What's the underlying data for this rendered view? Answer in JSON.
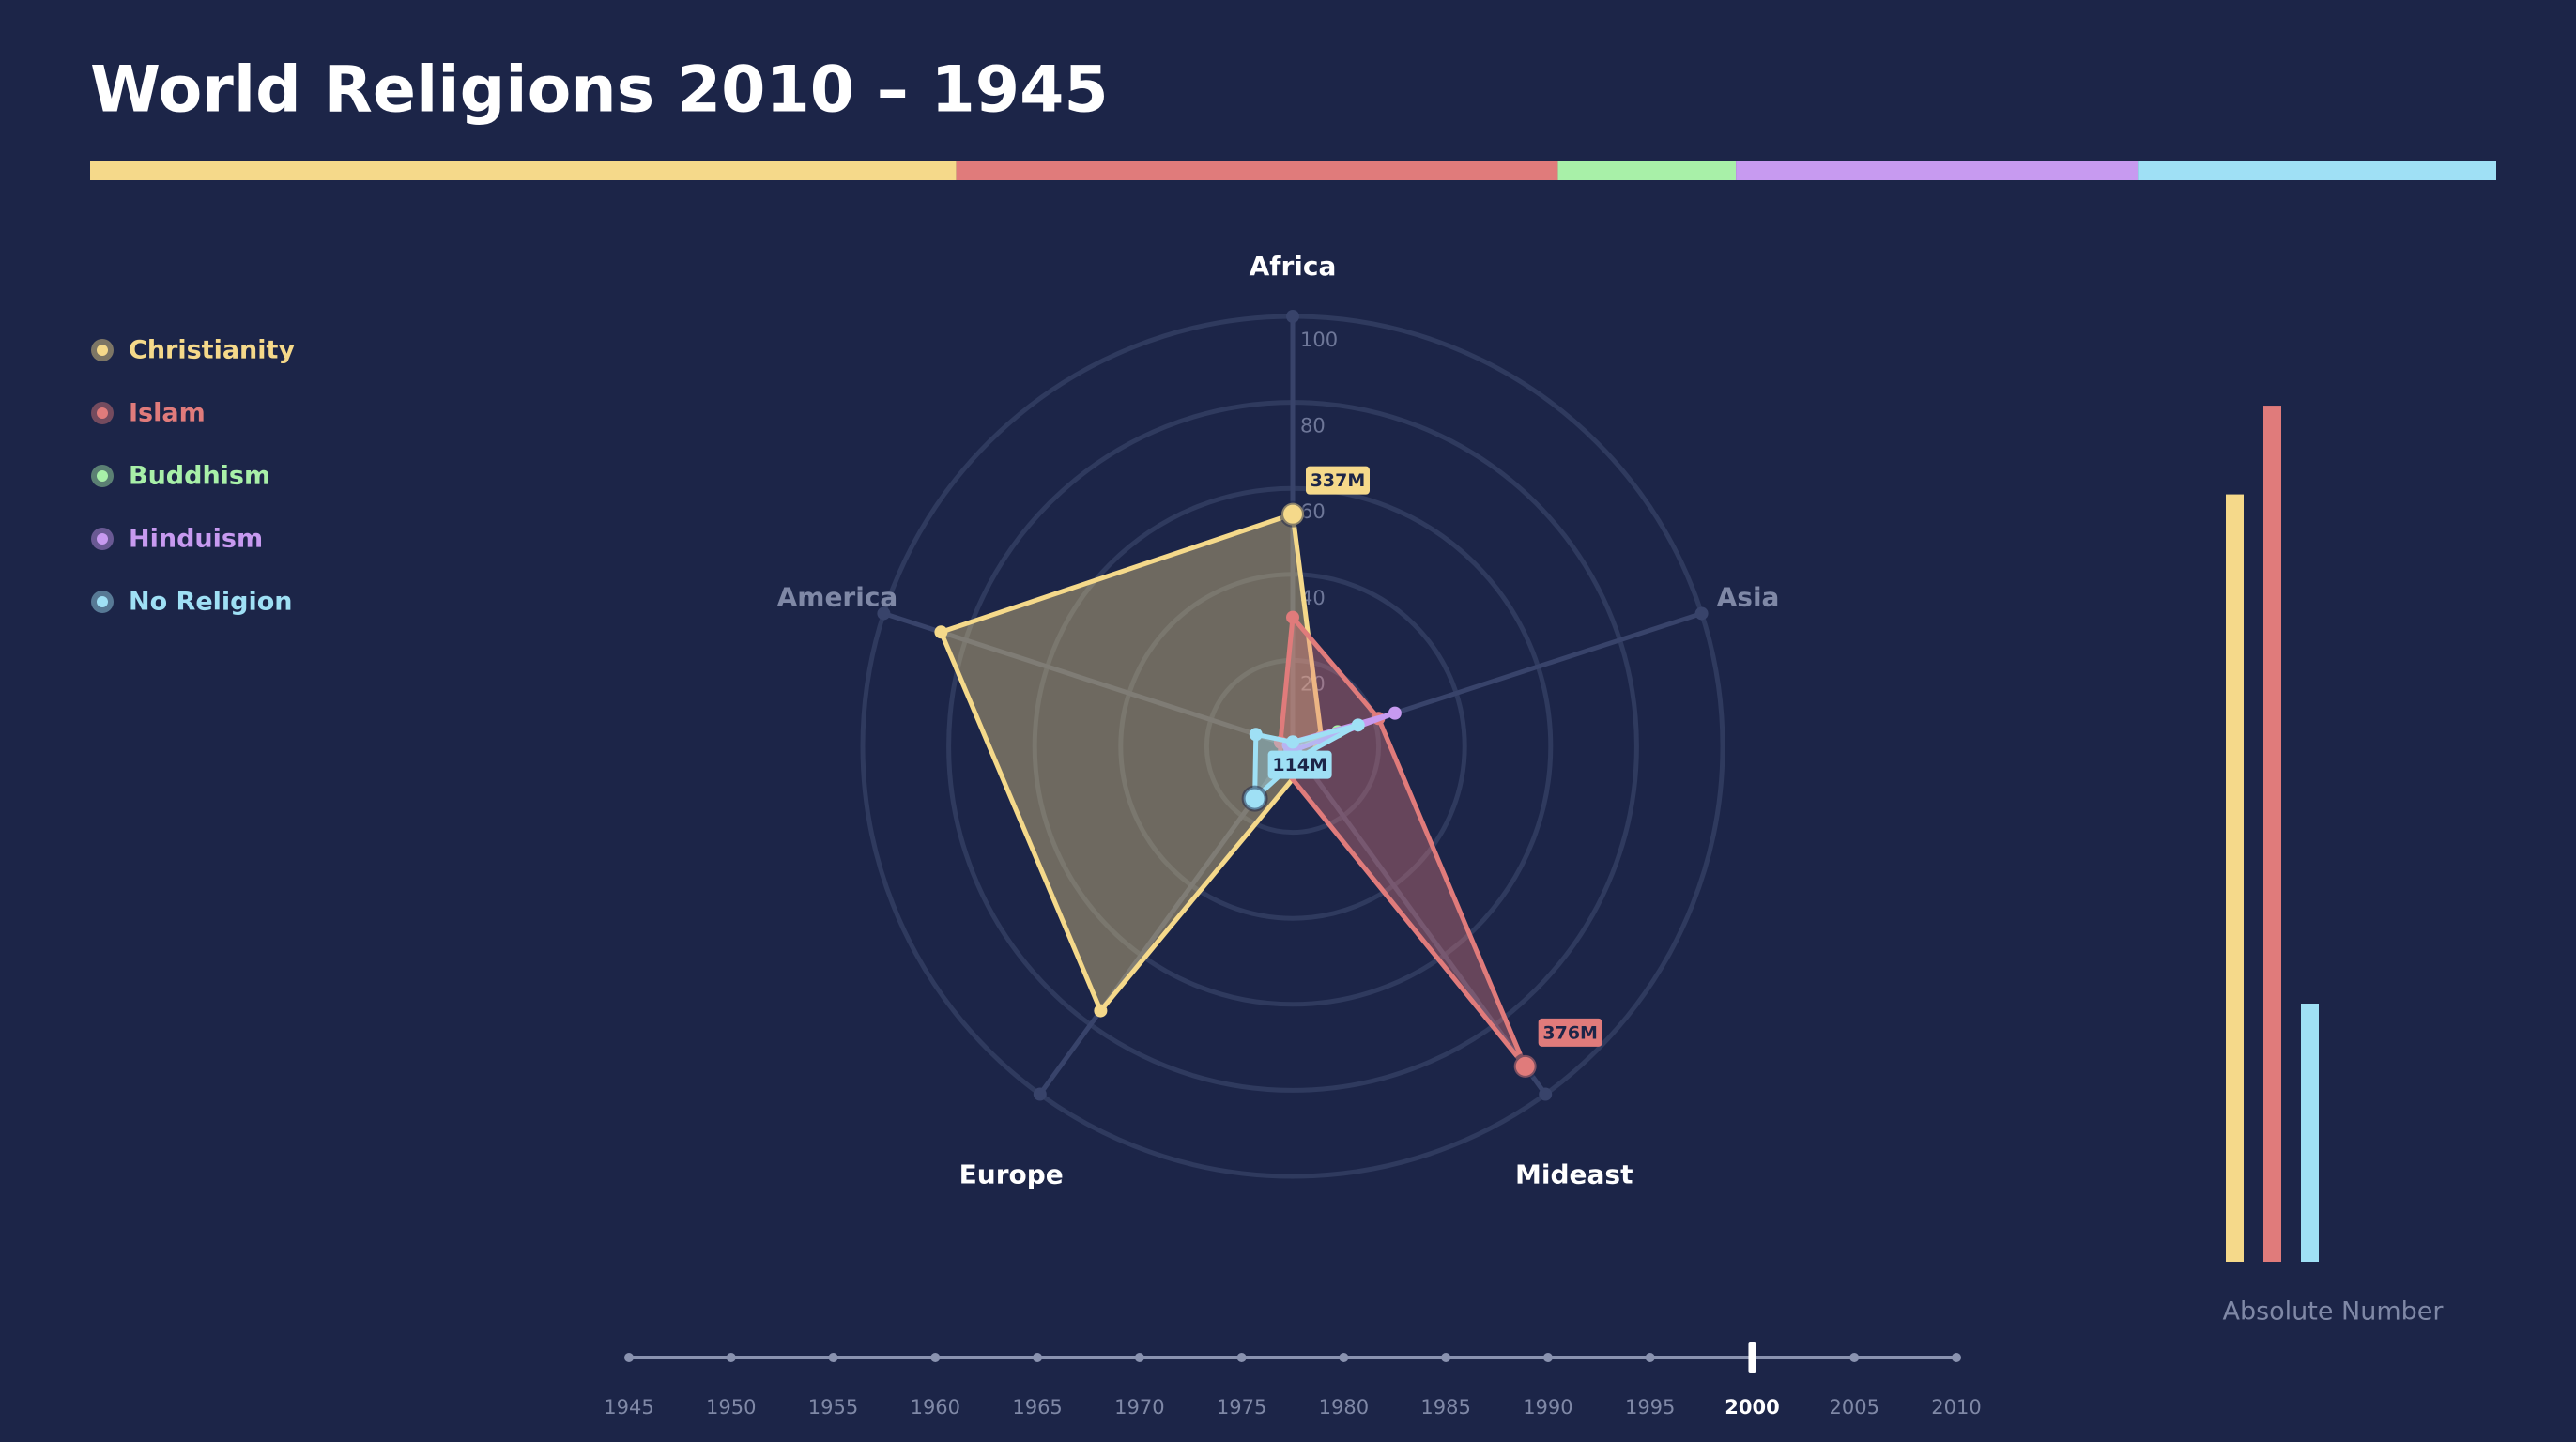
{
  "chart_data": [
    {
      "type": "radar",
      "title": "World Religions 2010 – 1945",
      "axes": [
        "Africa",
        "Asia",
        "Mideast",
        "Europe",
        "America"
      ],
      "rlim": [
        0,
        100
      ],
      "rticks": [
        20,
        40,
        60,
        80,
        100
      ],
      "series": [
        {
          "name": "Christianity",
          "color": "#f5d98a",
          "values": [
            54,
            7,
            5,
            76,
            86
          ]
        },
        {
          "name": "Islam",
          "color": "#e07b7b",
          "values": [
            30,
            21,
            92,
            5,
            3
          ]
        },
        {
          "name": "Buddhism",
          "color": "#a8f0a8",
          "values": [
            1,
            11,
            1,
            1,
            1
          ]
        },
        {
          "name": "Hinduism",
          "color": "#c79af0",
          "values": [
            1,
            25,
            1,
            1,
            1
          ]
        },
        {
          "name": "No Religion",
          "color": "#9fe0f5",
          "values": [
            1,
            16,
            3,
            15,
            9
          ]
        }
      ],
      "annotations": [
        "337M",
        "376M",
        "114M"
      ]
    },
    {
      "type": "share",
      "values": [
        36,
        25,
        7.4,
        16.7,
        14.9
      ],
      "colors": [
        "#f5d98a",
        "#e07b7b",
        "#a8f0a8",
        "#c79af0",
        "#9fe0f5"
      ]
    },
    {
      "type": "bar",
      "x_label": "Absolute Number",
      "values": [
        86.5,
        96.5,
        29.1
      ],
      "colors": [
        "#f5d98a",
        "#e07b7b",
        "#9fe0f5"
      ],
      "ylim": [
        0,
        100
      ]
    }
  ],
  "timeline": {
    "years": [
      1945,
      1950,
      1955,
      1960,
      1965,
      1970,
      1975,
      1980,
      1985,
      1990,
      1995,
      2000,
      2005,
      2010
    ],
    "selected": 2000
  }
}
